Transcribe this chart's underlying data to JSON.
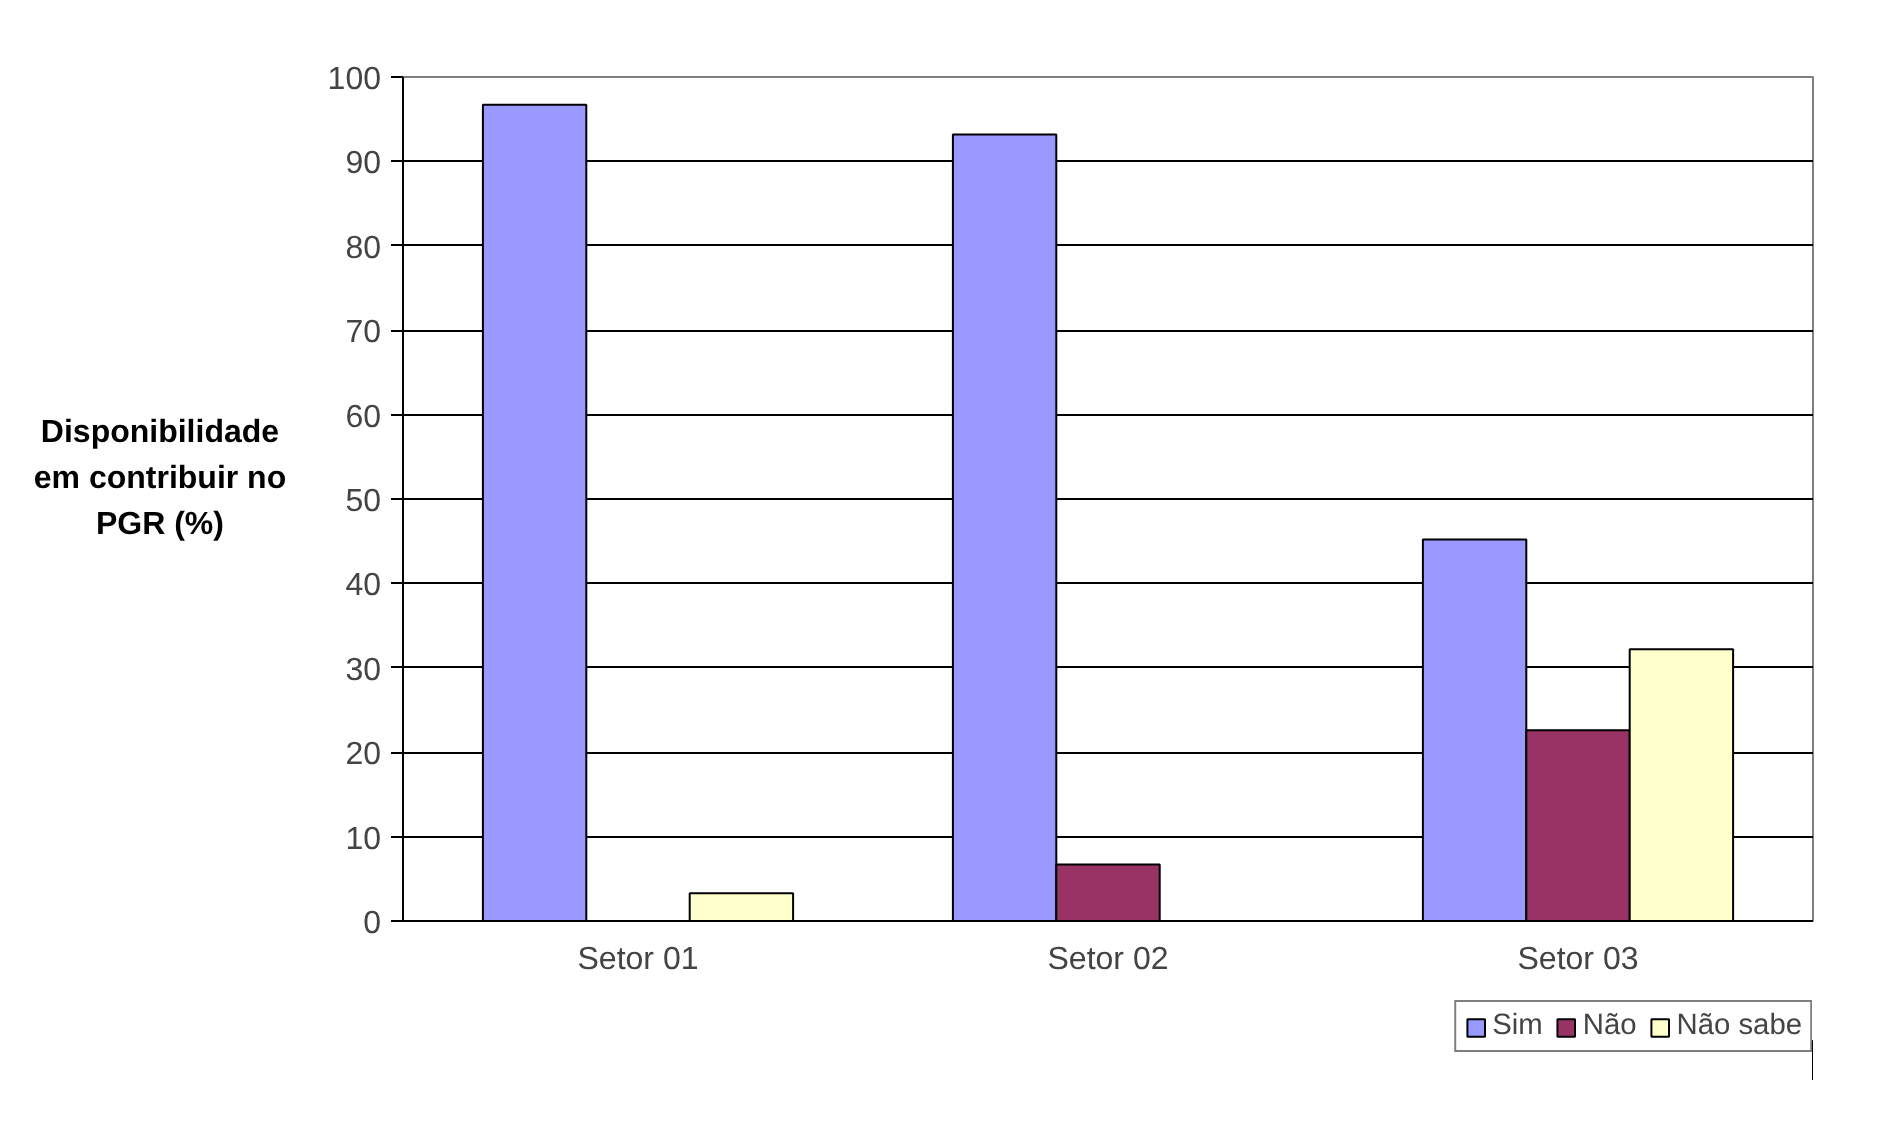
{
  "chart_data": {
    "type": "bar",
    "ylabel": "Disponibilidade\nem contribuir no\nPGR (%)",
    "categories": [
      "Setor 01",
      "Setor 02",
      "Setor 03"
    ],
    "series": [
      {
        "name": "Sim",
        "color": "#9999ff",
        "values": [
          96.7,
          93.2,
          45.2
        ]
      },
      {
        "name": "Não",
        "color": "#993366",
        "values": [
          0,
          6.7,
          22.6
        ]
      },
      {
        "name": "Não sabe",
        "color": "#ffffcc",
        "values": [
          3.3,
          0,
          32.2
        ]
      }
    ],
    "ylim": [
      0,
      100
    ],
    "yticks": [
      0,
      10,
      20,
      30,
      40,
      50,
      60,
      70,
      80,
      90,
      100
    ],
    "grid": "y",
    "legend": "bottom right"
  }
}
